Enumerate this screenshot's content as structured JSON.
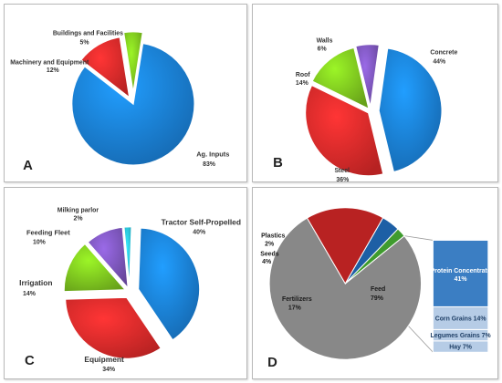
{
  "colors": {
    "blue": "#1a7ed4",
    "red": "#de2a2a",
    "green": "#7dc41f",
    "purple": "#7b55b9",
    "teal": "#2bbcd4",
    "gray": "#888888",
    "darkred": "#b82222",
    "darkblue": "#1d5fa5",
    "darkgreen": "#3f9b2e",
    "stack_blue": "#3b7ec3"
  },
  "chart_data": [
    {
      "type": "pie",
      "panel_letter": "A",
      "slices": [
        {
          "label": "Ag. Inputs",
          "value": 83,
          "value_label": "83%",
          "color": "blue"
        },
        {
          "label": "Machinery and Equipment",
          "value": 12,
          "value_label": "12%",
          "color": "red"
        },
        {
          "label": "Buildings and Facilities",
          "value": 5,
          "value_label": "5%",
          "color": "green"
        }
      ]
    },
    {
      "type": "pie",
      "panel_letter": "B",
      "slices": [
        {
          "label": "Concrete",
          "value": 44,
          "value_label": "44%",
          "color": "blue"
        },
        {
          "label": "Steel",
          "value": 36,
          "value_label": "36%",
          "color": "red"
        },
        {
          "label": "Roof",
          "value": 14,
          "value_label": "14%",
          "color": "green"
        },
        {
          "label": "Walls",
          "value": 6,
          "value_label": "6%",
          "color": "purple"
        }
      ]
    },
    {
      "type": "pie",
      "panel_letter": "C",
      "slices": [
        {
          "label": "Tractor Self-Propelled",
          "value": 40,
          "value_label": "40%",
          "color": "blue"
        },
        {
          "label": "Equipment",
          "value": 34,
          "value_label": "34%",
          "color": "red"
        },
        {
          "label": "Irrigation",
          "value": 14,
          "value_label": "14%",
          "color": "green"
        },
        {
          "label": "Feeding Fleet",
          "value": 10,
          "value_label": "10%",
          "color": "purple"
        },
        {
          "label": "Milking parlor",
          "value": 2,
          "value_label": "2%",
          "color": "teal"
        }
      ]
    },
    {
      "type": "pie",
      "panel_letter": "D",
      "slices": [
        {
          "label": "Feed",
          "value": 79,
          "value_label": "79%",
          "color": "gray"
        },
        {
          "label": "Fertilizers",
          "value": 17,
          "value_label": "17%",
          "color": "darkred"
        },
        {
          "label": "Seeds",
          "value": 4,
          "value_label": "4%",
          "color": "darkblue"
        },
        {
          "label": "Plastics",
          "value": 2,
          "value_label": "2%",
          "color": "darkgreen"
        }
      ],
      "feed_breakdown": [
        {
          "label": "Protein Concentrate",
          "value": 41,
          "value_label": "41%"
        },
        {
          "label": "Corn Grains",
          "value": 14,
          "value_label": "14%"
        },
        {
          "label": "Legumes Grains",
          "value": 7,
          "value_label": "7%"
        },
        {
          "label": "Hay",
          "value": 7,
          "value_label": "7%"
        }
      ]
    }
  ]
}
